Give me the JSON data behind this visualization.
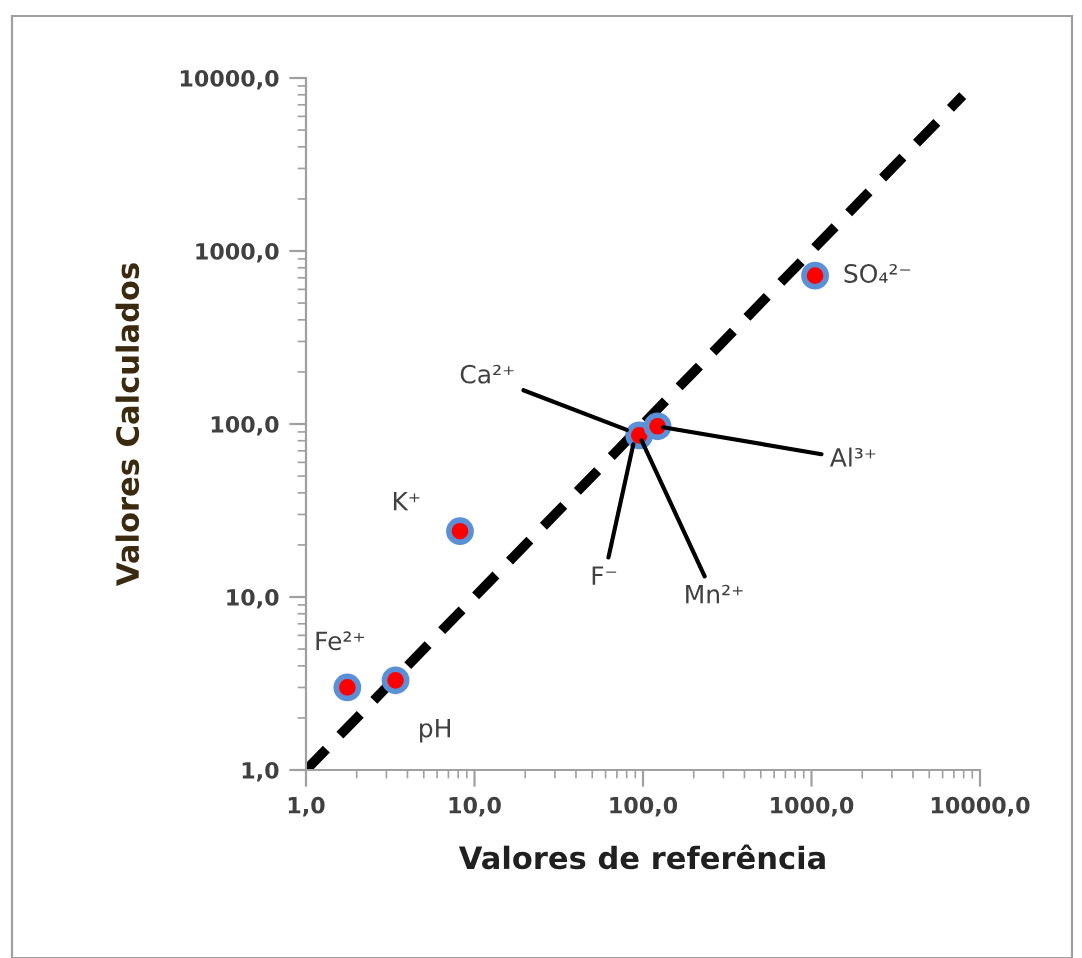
{
  "chart_data": {
    "type": "scatter",
    "xlabel": "Valores de referência",
    "ylabel": "Valores Calculados",
    "xlim": [
      1,
      10000
    ],
    "ylim": [
      1,
      10000
    ],
    "log": "xy",
    "xticks": [
      {
        "value": 1,
        "label": "1,0"
      },
      {
        "value": 10,
        "label": "10,0"
      },
      {
        "value": 100,
        "label": "100,0"
      },
      {
        "value": 1000,
        "label": "1000,0"
      },
      {
        "value": 10000,
        "label": "10000,0"
      }
    ],
    "yticks": [
      {
        "value": 1,
        "label": "1,0"
      },
      {
        "value": 10,
        "label": "10,0"
      },
      {
        "value": 100,
        "label": "100,0"
      },
      {
        "value": 1000,
        "label": "1000,0"
      },
      {
        "value": 10000,
        "label": "10000,0"
      }
    ],
    "grid": false,
    "legend": false,
    "series": [
      {
        "type": "line",
        "color": "#000000",
        "line_style": "dashed",
        "marker": "none",
        "x": [
          1,
          7900
        ],
        "values": [
          1,
          7900
        ]
      },
      {
        "color": "#ff0000",
        "marker": "circle",
        "x": [
          1.76,
          3.4,
          8.2,
          86,
          89,
          95,
          122,
          1050
        ],
        "values": [
          3.0,
          3.3,
          24,
          null,
          null,
          86,
          97,
          720
        ]
      }
    ],
    "annotations": [
      {
        "text": "Fe²⁺",
        "x": 1.76,
        "y": 3.0
      },
      {
        "text": "pH",
        "x": 3.4,
        "y": 3.3
      },
      {
        "text": "K⁺",
        "x": 8.2,
        "y": 24
      },
      {
        "text": "Ca²⁺",
        "x": 86,
        "y": 90
      },
      {
        "text": "F⁻",
        "x": 89,
        "y": 82
      },
      {
        "text": "Mn²⁺",
        "x": 95,
        "y": 86
      },
      {
        "text": "Al³⁺",
        "x": 122,
        "y": 97
      },
      {
        "text": "SO₄²⁻",
        "x": 1050,
        "y": 720
      }
    ]
  }
}
